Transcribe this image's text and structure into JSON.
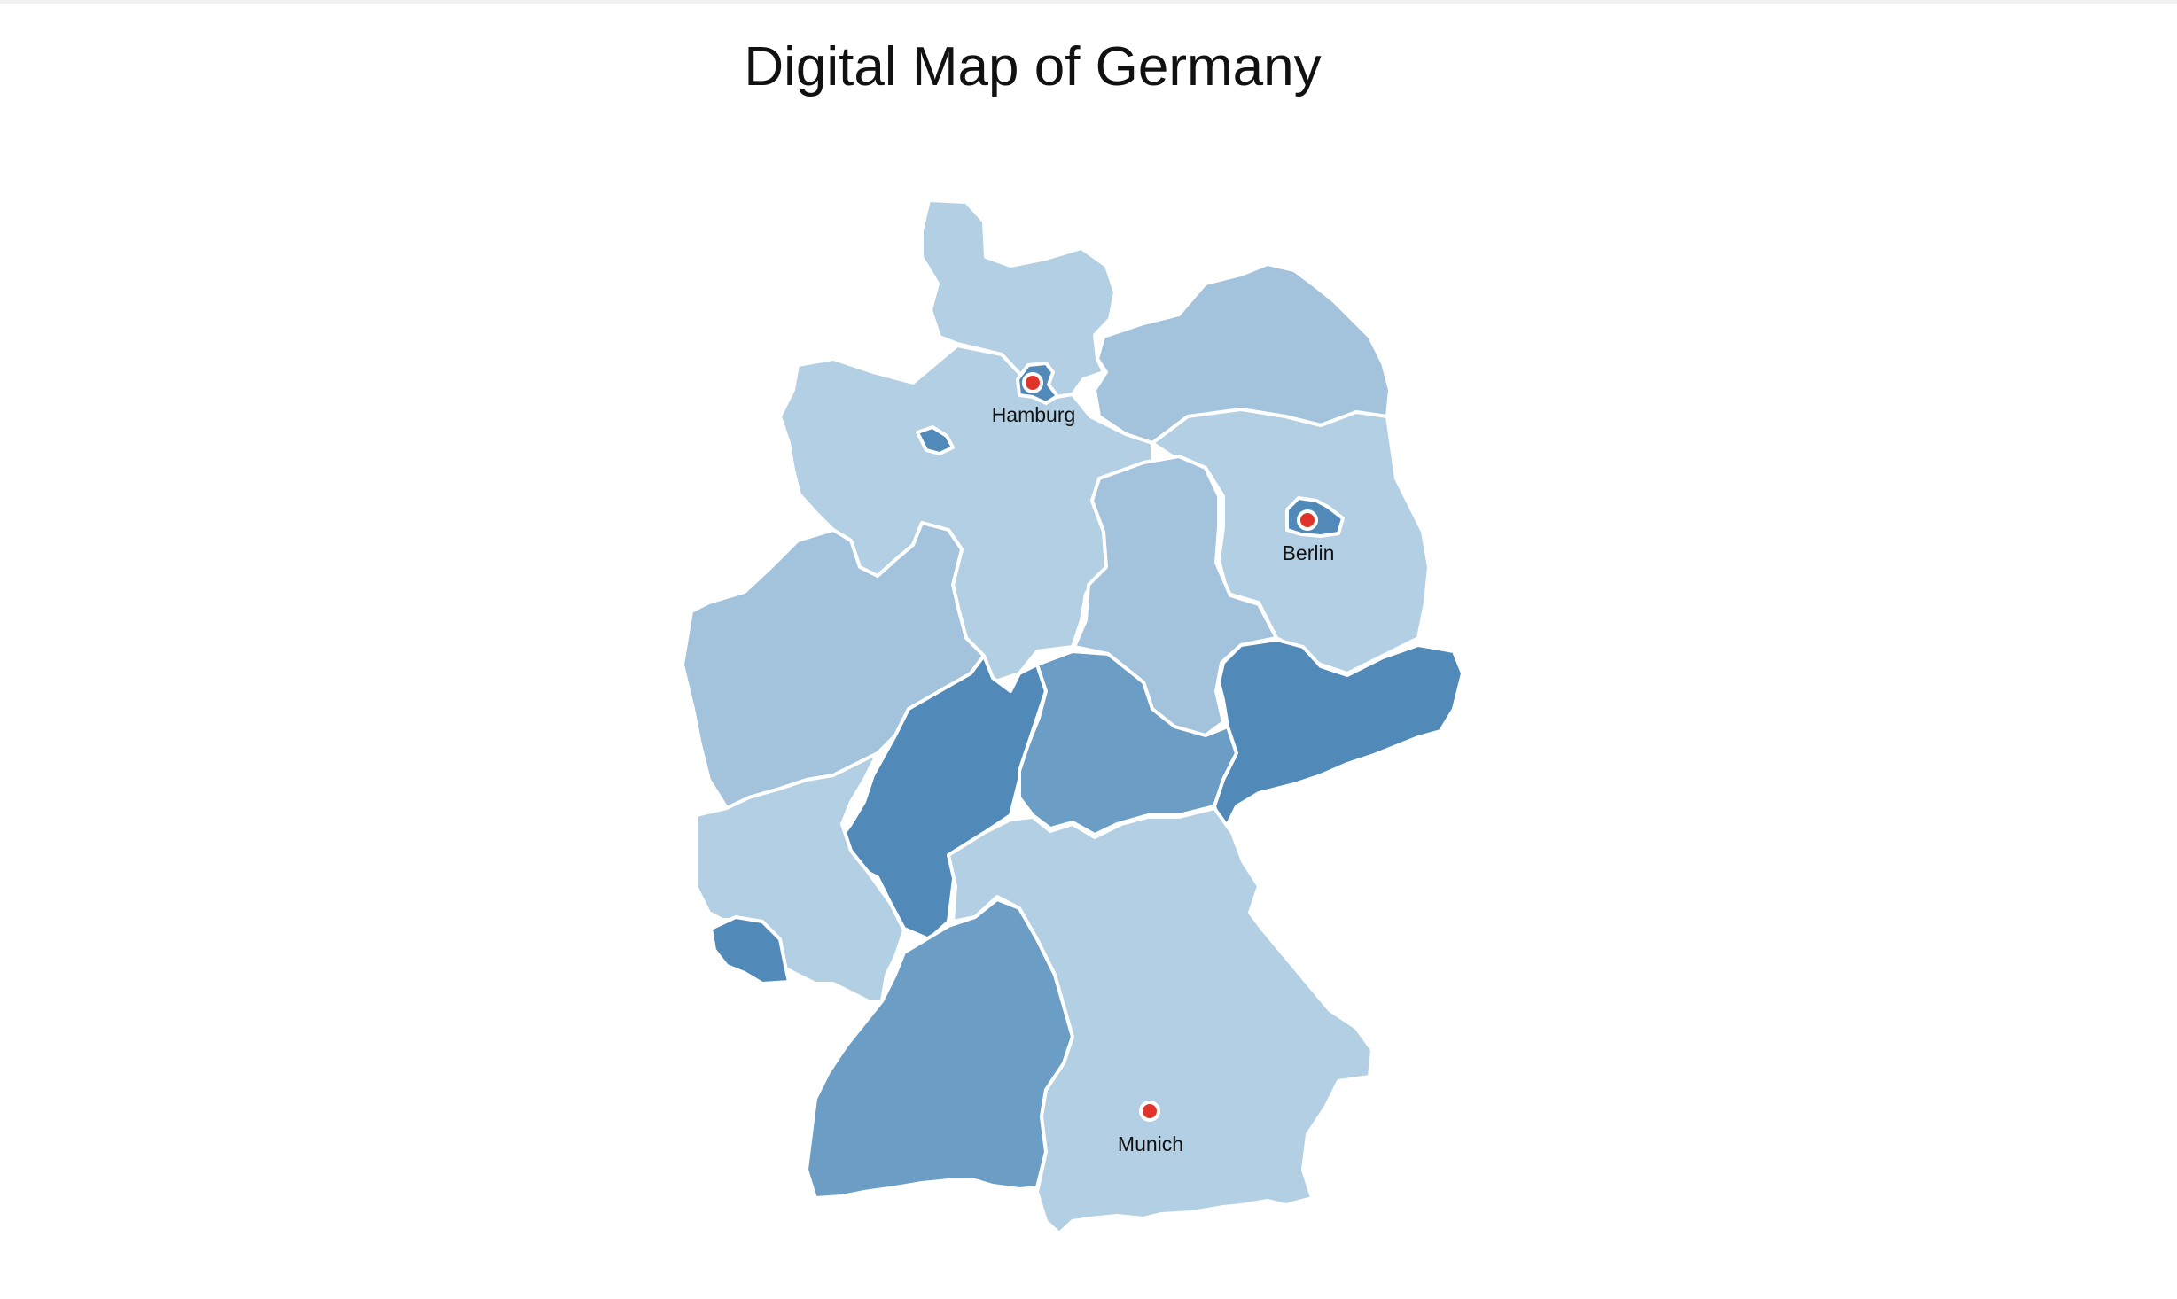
{
  "title": "Digital Map of Germany",
  "colors": {
    "lightest": "#b3cfe3",
    "light": "#a3c2dc",
    "medium": "#6b9dc5",
    "dark": "#5189b8",
    "border": "#ffffff",
    "city_marker": "#e0342b"
  },
  "regions": [
    {
      "id": "schleswig-holstein",
      "shade": "lightest"
    },
    {
      "id": "mecklenburg-vorpommern",
      "shade": "light"
    },
    {
      "id": "hamburg",
      "shade": "dark"
    },
    {
      "id": "bremen",
      "shade": "dark"
    },
    {
      "id": "niedersachsen",
      "shade": "lightest"
    },
    {
      "id": "brandenburg",
      "shade": "lightest"
    },
    {
      "id": "berlin",
      "shade": "dark"
    },
    {
      "id": "sachsen-anhalt",
      "shade": "light"
    },
    {
      "id": "nordrhein-westfalen",
      "shade": "light"
    },
    {
      "id": "hessen",
      "shade": "dark"
    },
    {
      "id": "thueringen",
      "shade": "medium"
    },
    {
      "id": "sachsen",
      "shade": "dark"
    },
    {
      "id": "rheinland-pfalz",
      "shade": "lightest"
    },
    {
      "id": "saarland",
      "shade": "dark"
    },
    {
      "id": "baden-wuerttemberg",
      "shade": "medium"
    },
    {
      "id": "bayern",
      "shade": "lightest"
    }
  ],
  "cities": [
    {
      "key": "hamburg",
      "label": "Hamburg"
    },
    {
      "key": "berlin",
      "label": "Berlin"
    },
    {
      "key": "munich",
      "label": "Munich"
    }
  ]
}
